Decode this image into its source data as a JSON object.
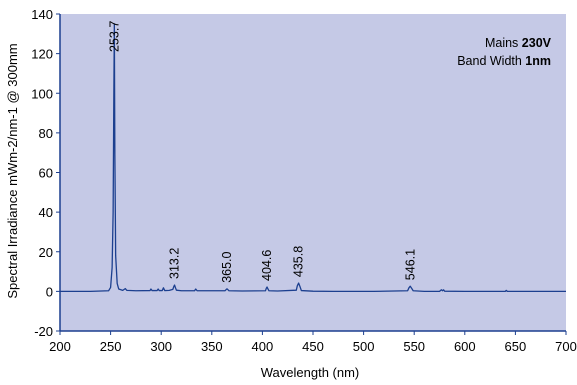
{
  "colors": {
    "plot_bg": "#c5c9e6",
    "line": "#1c3f8f",
    "axis": "#1c3f8f"
  },
  "annotation": {
    "line1_prefix": "Mains ",
    "line1_value": "230V",
    "line2_prefix": "Band Width ",
    "line2_value": "1nm"
  },
  "chart_data": {
    "type": "line",
    "title": "",
    "xlabel": "Wavelength (nm)",
    "ylabel": "Spectral Irradiance mWm-2/nm-1 @ 300mm",
    "xlim": [
      200,
      700
    ],
    "ylim": [
      -20,
      140
    ],
    "xticks": [
      "200",
      "250",
      "300",
      "350",
      "400",
      "450",
      "500",
      "550",
      "600",
      "650",
      "700"
    ],
    "yticks": [
      "-20",
      "0",
      "20",
      "40",
      "60",
      "80",
      "100",
      "120",
      "140"
    ],
    "grid": false,
    "series": [
      {
        "x": [
          200,
          230,
          248,
          250,
          251.5,
          252.5,
          253.2,
          253.7,
          254.2,
          255,
          256.5,
          258,
          262,
          264.5,
          266,
          275,
          289,
          289.8,
          291,
          296,
          297,
          298,
          301,
          302.2,
          303.5,
          308,
          311.5,
          312.5,
          313.2,
          314,
          315,
          320,
          333,
          334.1,
          335.5,
          340,
          363,
          364.2,
          365.0,
          365.8,
          367,
          380,
          403,
          403.9,
          404.6,
          405.3,
          406.5,
          415,
          433.5,
          434.5,
          435.8,
          437,
          438.5,
          450,
          470,
          490,
          510,
          543.5,
          544.8,
          546.1,
          547.4,
          549,
          560,
          575,
          576.9,
          578,
          579,
          580,
          600,
          640,
          641,
          642,
          660,
          690,
          700
        ],
        "y": [
          0,
          0,
          0.3,
          2,
          12,
          40,
          100,
          135,
          70,
          18,
          4,
          1.2,
          0.5,
          1.4,
          0.5,
          0.3,
          0.4,
          1.2,
          0.4,
          0.4,
          1.2,
          0.4,
          0.4,
          1.8,
          0.4,
          0.5,
          1,
          2.5,
          3.2,
          2,
          0.6,
          0.3,
          0.3,
          1.2,
          0.3,
          0.3,
          0.3,
          0.9,
          1.3,
          0.9,
          0.3,
          0.2,
          0.3,
          1.6,
          2.2,
          1.4,
          0.3,
          0.2,
          0.6,
          2.8,
          4.2,
          2.6,
          0.4,
          0.1,
          0,
          0,
          0,
          0.3,
          1.8,
          2.6,
          1.6,
          0.3,
          0,
          0,
          0.8,
          0.3,
          0.8,
          0.1,
          0,
          0,
          0.5,
          0,
          0,
          0,
          0
        ]
      }
    ],
    "peak_labels": [
      {
        "x": 253.7,
        "y": 135,
        "label": "253.7"
      },
      {
        "x": 313.2,
        "y": 3.2,
        "label": "313.2"
      },
      {
        "x": 365.0,
        "y": 1.3,
        "label": "365.0"
      },
      {
        "x": 404.6,
        "y": 2.2,
        "label": "404.6"
      },
      {
        "x": 435.8,
        "y": 4.2,
        "label": "435.8"
      },
      {
        "x": 546.1,
        "y": 2.6,
        "label": "546.1"
      }
    ]
  }
}
